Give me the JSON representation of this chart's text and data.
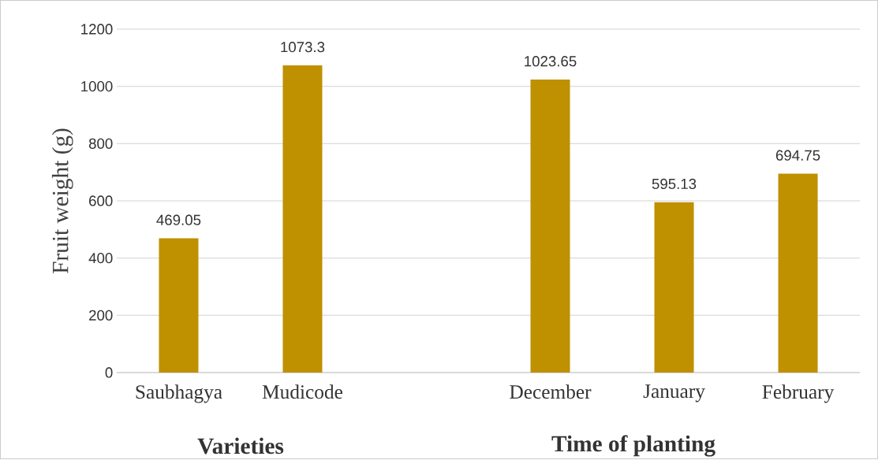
{
  "chart_data": {
    "type": "bar",
    "ylabel": "Fruit weight (g)",
    "categories": [
      "Saubhagya",
      "Mudicode",
      null,
      "December",
      "January",
      "February"
    ],
    "values": [
      469.05,
      1073.3,
      null,
      1023.65,
      595.13,
      694.75
    ],
    "color": "#bf9000",
    "data_labels": true,
    "ylim": [
      0,
      1200
    ],
    "yticks": [
      0,
      200,
      400,
      600,
      800,
      1000,
      1200
    ],
    "grid": "y",
    "annotations": [
      "Varieties",
      "Time of planting"
    ]
  }
}
